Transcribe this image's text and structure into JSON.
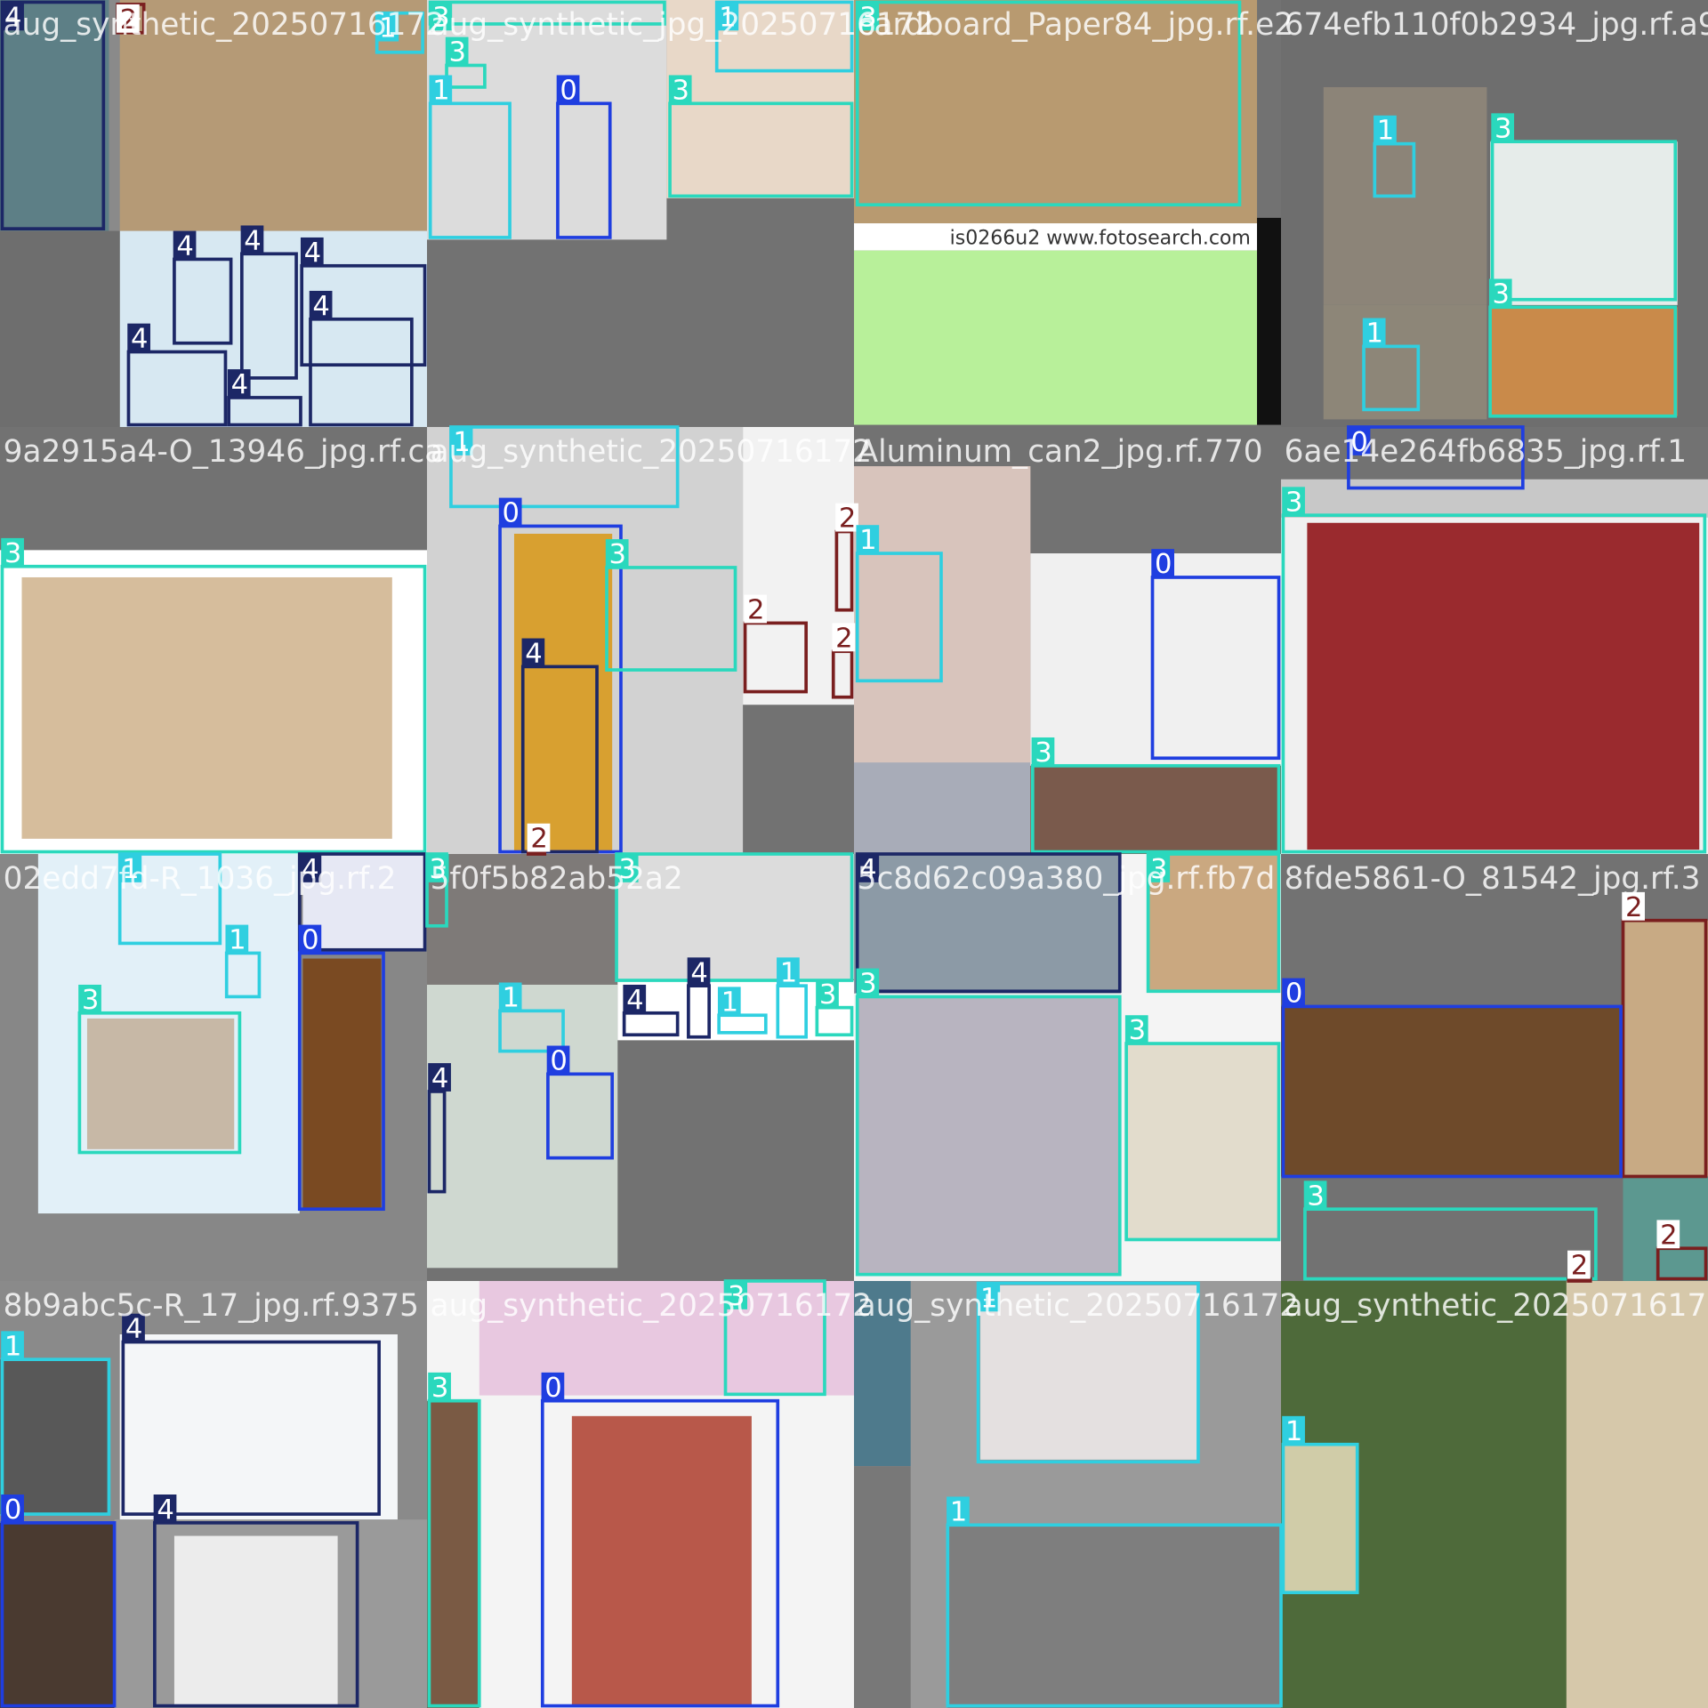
{
  "class_colors": [
    "#1f3ee0",
    "#2fcfe0",
    "#7a1f1f",
    "#2ad8bd",
    "#1c2766"
  ],
  "tiles": [
    {
      "filename": "aug_synthetic_20250716172",
      "labels": [
        4,
        2,
        1,
        4,
        4,
        4,
        4,
        4,
        4
      ]
    },
    {
      "filename": "aug_synthetic_jpg_20250716172",
      "labels": [
        3,
        3,
        1,
        0,
        1,
        3
      ]
    },
    {
      "filename": "cardboard_Paper84_jpg.rf.e2",
      "labels": [
        3
      ],
      "watermark": "is0266u2  www.fotosearch.com"
    },
    {
      "filename": "674efb110f0b2934_jpg.rf.a92",
      "labels": [
        1,
        3,
        3,
        1
      ]
    },
    {
      "filename": "9a2915a4-O_13946_jpg.rf.ca",
      "labels": [
        3
      ]
    },
    {
      "filename": "aug_synthetic_20250716172",
      "labels": [
        1,
        0,
        3,
        4,
        2,
        2,
        2,
        2
      ]
    },
    {
      "filename": "Aluminum_can2_jpg.rf.770",
      "labels": [
        1,
        0,
        3
      ]
    },
    {
      "filename": "6ae14e264fb6835_jpg.rf.1",
      "labels": [
        0,
        3
      ]
    },
    {
      "filename": "02edd7fd-R_1036_jpg.rf.2",
      "labels": [
        1,
        4,
        1,
        3,
        0
      ]
    },
    {
      "filename": "5f0f5b82ab52a2",
      "labels": [
        3,
        3,
        1,
        0,
        4,
        4,
        4,
        1,
        1,
        3
      ]
    },
    {
      "filename": "5c8d62c09a380_jpg.rf.fb7d",
      "labels": [
        4,
        3,
        3,
        3
      ]
    },
    {
      "filename": "8fde5861-O_81542_jpg.rf.3",
      "labels": [
        2,
        0,
        3,
        2,
        2
      ]
    },
    {
      "filename": "8b9abc5c-R_17_jpg.rf.9375",
      "labels": [
        1,
        4,
        0,
        4
      ]
    },
    {
      "filename": "aug_synthetic_20250716172",
      "labels": [
        3,
        3,
        0
      ]
    },
    {
      "filename": "aug_synthetic_20250716172",
      "labels": [
        1,
        1
      ]
    },
    {
      "filename": "aug_synthetic_20250716172",
      "labels": [
        1
      ]
    }
  ]
}
